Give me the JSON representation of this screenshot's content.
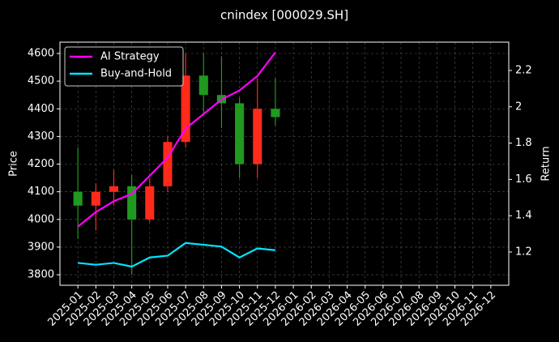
{
  "chart_data": {
    "type": "candlestick",
    "title": "cnindex [000029.SH]",
    "ylabel": "Price",
    "y2label": "Return",
    "x": [
      "2025-01",
      "2025-02",
      "2025-03",
      "2025-04",
      "2025-05",
      "2025-06",
      "2025-07",
      "2025-08",
      "2025-09",
      "2025-10",
      "2025-11",
      "2025-12"
    ],
    "open": [
      4100,
      4050,
      4100,
      4120,
      4000,
      4120,
      4280,
      4520,
      4450,
      4420,
      4200,
      4400
    ],
    "high": [
      4260,
      4130,
      4180,
      4160,
      4150,
      4300,
      4600,
      4600,
      4590,
      4440,
      4510,
      4510
    ],
    "low": [
      3930,
      3960,
      4050,
      3800,
      3990,
      4100,
      4260,
      4380,
      4330,
      4150,
      4150,
      4340
    ],
    "close": [
      4050,
      4100,
      4120,
      4000,
      4120,
      4280,
      4520,
      4450,
      4420,
      4200,
      4400,
      4370
    ],
    "up_color": "#ff2a1a",
    "down_color": "#1f9a1f",
    "series": [
      {
        "name": "AI Strategy",
        "color": "#ff00ff",
        "axis": "y2",
        "values": [
          1.34,
          1.42,
          1.48,
          1.52,
          1.62,
          1.72,
          1.88,
          1.96,
          2.04,
          2.09,
          2.17,
          2.3
        ]
      },
      {
        "name": "Buy-and-Hold",
        "color": "#00e5ff",
        "axis": "y2",
        "values": [
          1.14,
          1.13,
          1.14,
          1.12,
          1.17,
          1.18,
          1.25,
          1.24,
          1.23,
          1.17,
          1.22,
          1.21
        ]
      }
    ],
    "xlim": [
      "2024-12",
      "2027-01"
    ],
    "xticks": [
      "2025-01",
      "2025-02",
      "2025-03",
      "2025-04",
      "2025-05",
      "2025-06",
      "2025-07",
      "2025-08",
      "2025-09",
      "2025-10",
      "2025-11",
      "2025-12",
      "2026-01",
      "2026-02",
      "2026-03",
      "2026-04",
      "2026-05",
      "2026-06",
      "2026-07",
      "2026-08",
      "2026-09",
      "2026-10",
      "2026-11",
      "2026-12"
    ],
    "ylim": [
      3762,
      4641
    ],
    "yticks": [
      3800,
      3900,
      4000,
      4100,
      4200,
      4300,
      4400,
      4500,
      4600
    ],
    "y2lim": [
      1.017,
      2.356
    ],
    "y2ticks": [
      1.2,
      1.4,
      1.6,
      1.8,
      2.0,
      2.2
    ],
    "grid": true,
    "legend": "upper-left"
  }
}
